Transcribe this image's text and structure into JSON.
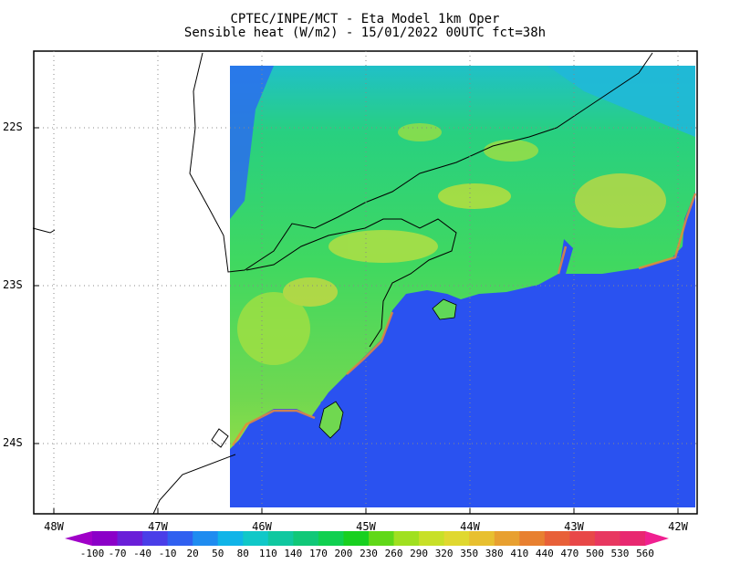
{
  "title": {
    "line1": "CPTEC/INPE/MCT -  Eta Model 1km Oper",
    "line2": "Sensible heat (W/m2) - 15/01/2022 00UTC fct=38h"
  },
  "axes": {
    "y_labels": [
      "22S",
      "23S",
      "24S"
    ],
    "x_labels": [
      "48W",
      "47W",
      "46W",
      "45W",
      "44W",
      "43W",
      "42W"
    ]
  },
  "colorbar": {
    "labels": [
      "-100",
      "-70",
      "-40",
      "-10",
      "20",
      "50",
      "80",
      "110",
      "140",
      "170",
      "200",
      "230",
      "260",
      "290",
      "320",
      "350",
      "380",
      "410",
      "440",
      "470",
      "500",
      "530",
      "560"
    ],
    "colors": [
      "#8b00c8",
      "#6a1fd8",
      "#4a3ee8",
      "#3060f0",
      "#1f8cf0",
      "#10b4e8",
      "#10c8c8",
      "#10c8a0",
      "#10c878",
      "#10d050",
      "#18d020",
      "#60d818",
      "#a0e020",
      "#c8e028",
      "#e0d830",
      "#e8c030",
      "#e8a030",
      "#e88030",
      "#e86038",
      "#e84848",
      "#e83860",
      "#e82870"
    ]
  },
  "palette": {
    "ocean": "#2a52f0",
    "land_cool": "#2cb4e8",
    "land_mid": "#20c890",
    "land_warm": "#38d860",
    "land_hot": "#b8e040",
    "coast_hot": "#e88838"
  }
}
